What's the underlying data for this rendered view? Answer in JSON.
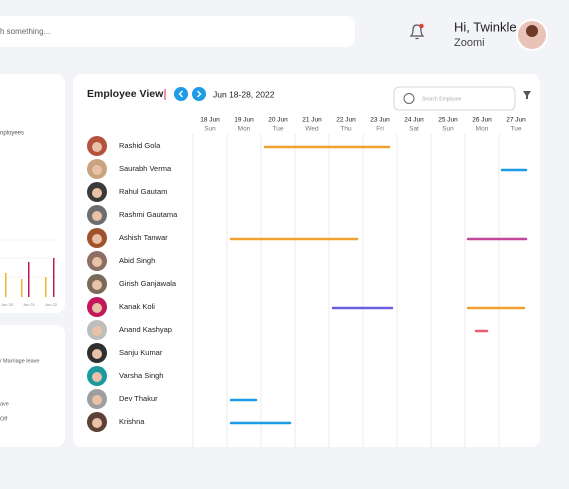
{
  "search": {
    "placeholder": "h something..."
  },
  "header": {
    "greeting": "Hi, Twinkle",
    "company": "Zoomi"
  },
  "side_panel": {
    "labels": [
      "nployees",
      "Jun 20",
      "Jun 21",
      "Jun 22"
    ]
  },
  "leave_panel": {
    "labels": [
      "/ Marriage leave",
      "ave",
      "Off"
    ]
  },
  "schedule": {
    "title": "Employee View",
    "date_range": "Jun 18-28, 2022",
    "search_placeholder": "Search Employee",
    "days": [
      {
        "date": "18 Jun",
        "weekday": "Sun"
      },
      {
        "date": "19 Jun",
        "weekday": "Mon"
      },
      {
        "date": "20 Jun",
        "weekday": "Tue"
      },
      {
        "date": "21 Jun",
        "weekday": "Wed"
      },
      {
        "date": "22 Jun",
        "weekday": "Thu"
      },
      {
        "date": "23 Jun",
        "weekday": "Fri"
      },
      {
        "date": "24 Jun",
        "weekday": "Sat"
      },
      {
        "date": "25 Jun",
        "weekday": "Sun"
      },
      {
        "date": "26 Jun",
        "weekday": "Mon"
      },
      {
        "date": "27 Jun",
        "weekday": "Tue"
      }
    ],
    "employees": [
      "Rashid Gola",
      "Saurabh Verma",
      "Rahul Gautam",
      "Rashmi Gautama",
      "Ashish Tanwar",
      "Abid Singh",
      "Girish Ganjawala",
      "Kanak Koli",
      "Anand Kashyap",
      "Sanju Kumar",
      "Varsha Singh",
      "Dev Thakur",
      "Krishna"
    ]
  }
}
